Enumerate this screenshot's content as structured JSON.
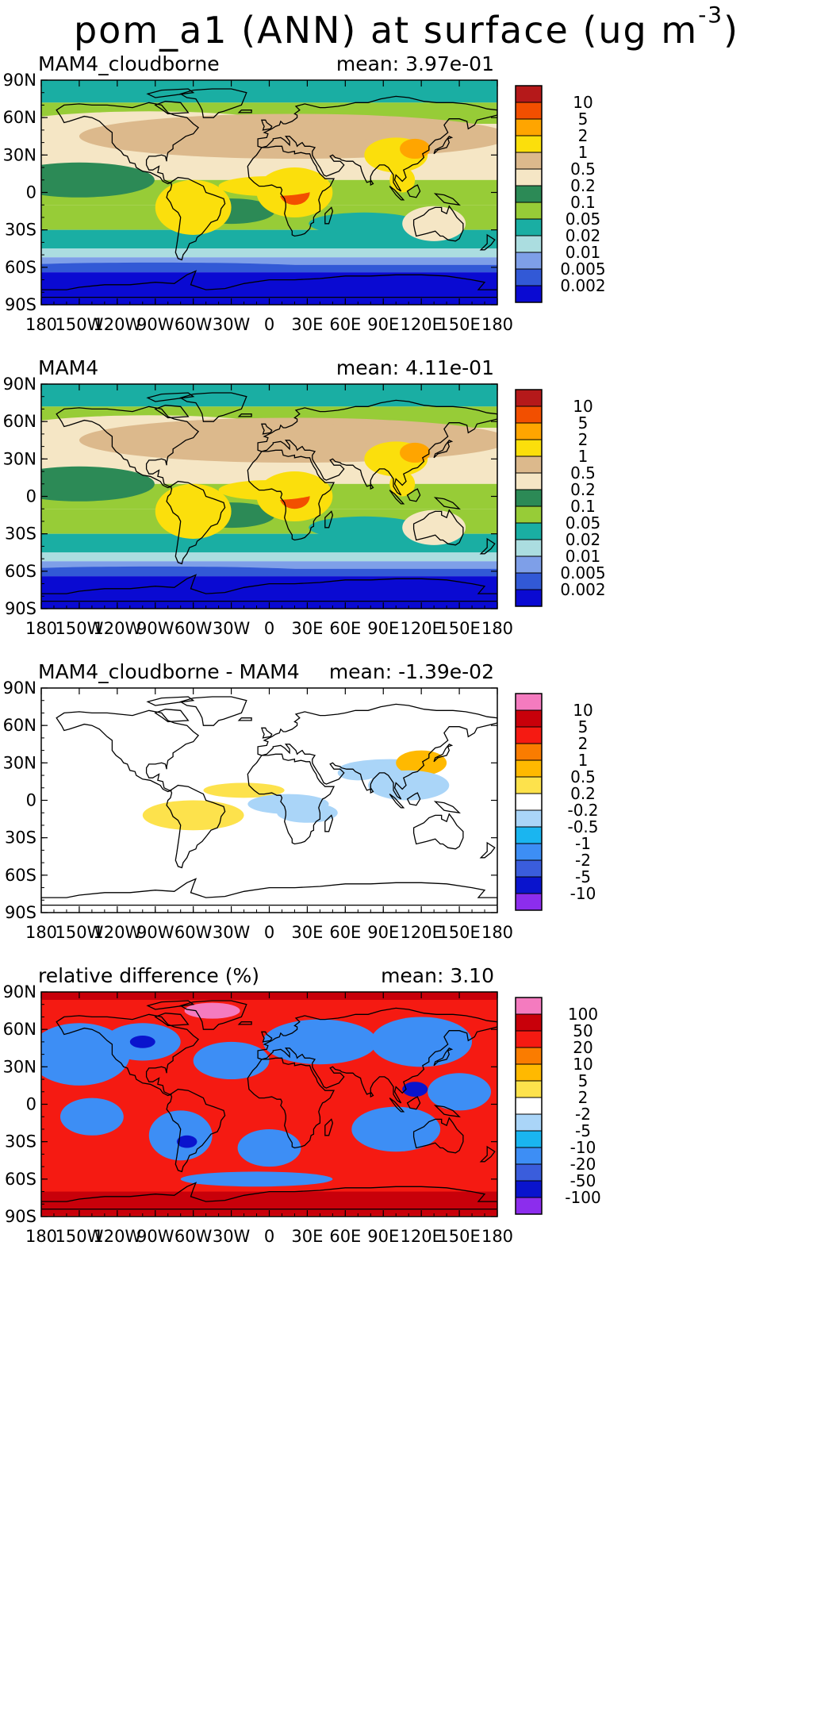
{
  "figure": {
    "title_main": "pom_a1 (ANN) at surface (ug m",
    "title_sup": "-3",
    "title_end": ")"
  },
  "chart_data": [
    {
      "type": "heatmap",
      "panel_title": "MAM4_cloudborne",
      "stat_text": "mean: 3.97e-01",
      "x_ticks": [
        "180",
        "150W",
        "120W",
        "90W",
        "60W",
        "30W",
        "0",
        "30E",
        "60E",
        "90E",
        "120E",
        "150E",
        "180"
      ],
      "y_ticks": [
        "90N",
        "60N",
        "30N",
        "0",
        "30S",
        "60S",
        "90S"
      ],
      "xlim": [
        -180,
        180
      ],
      "ylim": [
        -90,
        90
      ],
      "colorbar_labels": [
        "10",
        "5",
        "2",
        "1",
        "0.5",
        "0.2",
        "0.1",
        "0.05",
        "0.02",
        "0.01",
        "0.005",
        "0.002"
      ],
      "colorbar_colors": [
        "#b5191a",
        "#f24f00",
        "#ffa500",
        "#fbdf0c",
        "#dcb98c",
        "#f5e6c5",
        "#2c8a56",
        "#97cc37",
        "#1aaea3",
        "#abdde0",
        "#7e9fe8",
        "#3259d6",
        "#0a0ad2"
      ]
    },
    {
      "type": "heatmap",
      "panel_title": "MAM4",
      "stat_text": "mean: 4.11e-01",
      "x_ticks": [
        "180",
        "150W",
        "120W",
        "90W",
        "60W",
        "30W",
        "0",
        "30E",
        "60E",
        "90E",
        "120E",
        "150E",
        "180"
      ],
      "y_ticks": [
        "90N",
        "60N",
        "30N",
        "0",
        "30S",
        "60S",
        "90S"
      ],
      "xlim": [
        -180,
        180
      ],
      "ylim": [
        -90,
        90
      ],
      "colorbar_labels": [
        "10",
        "5",
        "2",
        "1",
        "0.5",
        "0.2",
        "0.1",
        "0.05",
        "0.02",
        "0.01",
        "0.005",
        "0.002"
      ],
      "colorbar_colors": [
        "#b5191a",
        "#f24f00",
        "#ffa500",
        "#fbdf0c",
        "#dcb98c",
        "#f5e6c5",
        "#2c8a56",
        "#97cc37",
        "#1aaea3",
        "#abdde0",
        "#7e9fe8",
        "#3259d6",
        "#0a0ad2"
      ]
    },
    {
      "type": "heatmap",
      "panel_title": "MAM4_cloudborne - MAM4",
      "stat_text": "mean: -1.39e-02",
      "x_ticks": [
        "180",
        "150W",
        "120W",
        "90W",
        "60W",
        "30W",
        "0",
        "30E",
        "60E",
        "90E",
        "120E",
        "150E",
        "180"
      ],
      "y_ticks": [
        "90N",
        "60N",
        "30N",
        "0",
        "30S",
        "60S",
        "90S"
      ],
      "xlim": [
        -180,
        180
      ],
      "ylim": [
        -90,
        90
      ],
      "colorbar_labels": [
        "10",
        "5",
        "2",
        "1",
        "0.5",
        "0.2",
        "-0.2",
        "-0.5",
        "-1",
        "-2",
        "-5",
        "-10"
      ],
      "colorbar_colors": [
        "#f47bbf",
        "#c8000a",
        "#f51a12",
        "#fa7c00",
        "#ffb900",
        "#fde24c",
        "#ffffff",
        "#aad5f8",
        "#1ab5f0",
        "#3d8ef5",
        "#3a5ddc",
        "#0a14cd",
        "#8c2ded"
      ]
    },
    {
      "type": "heatmap",
      "panel_title": "relative difference (%)",
      "stat_text": "mean:  3.10",
      "x_ticks": [
        "180",
        "150W",
        "120W",
        "90W",
        "60W",
        "30W",
        "0",
        "30E",
        "60E",
        "90E",
        "120E",
        "150E",
        "180"
      ],
      "y_ticks": [
        "90N",
        "60N",
        "30N",
        "0",
        "30S",
        "60S",
        "90S"
      ],
      "xlim": [
        -180,
        180
      ],
      "ylim": [
        -90,
        90
      ],
      "colorbar_labels": [
        "100",
        "50",
        "20",
        "10",
        "5",
        "2",
        "-2",
        "-5",
        "-10",
        "-20",
        "-50",
        "-100"
      ],
      "colorbar_colors": [
        "#f47bbf",
        "#c8000a",
        "#f51a12",
        "#fa7c00",
        "#ffb900",
        "#fde24c",
        "#ffffff",
        "#aad5f8",
        "#1ab5f0",
        "#3d8ef5",
        "#3a5ddc",
        "#0a14cd",
        "#8c2ded"
      ]
    }
  ]
}
